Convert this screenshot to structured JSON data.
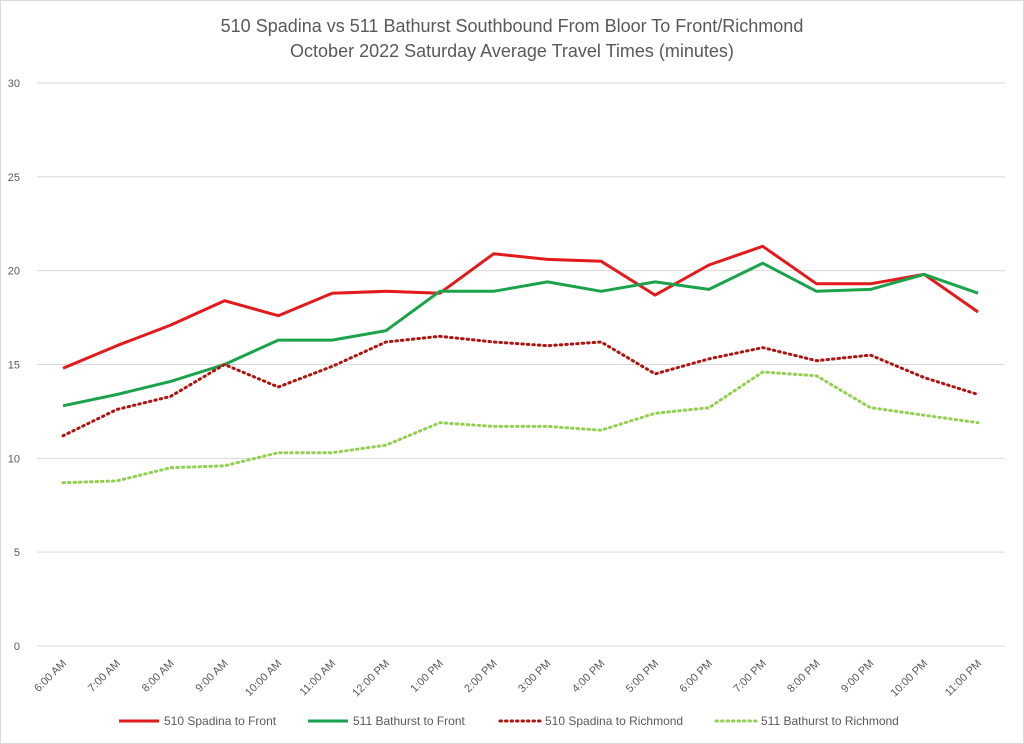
{
  "chart_data": {
    "type": "line",
    "title": "510 Spadina vs 511 Bathurst Southbound From Bloor To Front/Richmond",
    "subtitle": "October 2022 Saturday Average Travel Times (minutes)",
    "xlabel": "",
    "ylabel": "",
    "ylim": [
      0,
      30
    ],
    "yticks": [
      "0",
      "5",
      "10",
      "15",
      "20",
      "25",
      "30"
    ],
    "grid": true,
    "legend_position": "bottom",
    "categories": [
      "6:00 AM",
      "7:00 AM",
      "8:00 AM",
      "9:00 AM",
      "10:00 AM",
      "11:00 AM",
      "12:00 PM",
      "1:00 PM",
      "2:00 PM",
      "3:00 PM",
      "4:00 PM",
      "5:00 PM",
      "6:00 PM",
      "7:00 PM",
      "8:00 PM",
      "9:00 PM",
      "10:00 PM",
      "11:00 PM"
    ],
    "series": [
      {
        "name": "510 Spadina to Front",
        "color": "#e31a1c",
        "dash": "solid",
        "values": [
          14.8,
          16.0,
          17.1,
          18.4,
          17.6,
          18.8,
          18.9,
          18.8,
          20.9,
          20.6,
          20.5,
          18.7,
          20.3,
          21.3,
          19.3,
          19.3,
          19.8,
          17.8
        ]
      },
      {
        "name": "511 Bathurst to Front",
        "color": "#1aa34a",
        "dash": "solid",
        "values": [
          12.8,
          13.4,
          14.1,
          15.0,
          16.3,
          16.3,
          16.8,
          18.9,
          18.9,
          19.4,
          18.9,
          19.4,
          19.0,
          20.4,
          18.9,
          19.0,
          19.8,
          18.8
        ]
      },
      {
        "name": "510 Spadina to Richmond",
        "color": "#b0140f",
        "dash": "dotted",
        "values": [
          11.2,
          12.6,
          13.3,
          15.0,
          13.8,
          14.9,
          16.2,
          16.5,
          16.2,
          16.0,
          16.2,
          14.5,
          15.3,
          15.9,
          15.2,
          15.5,
          14.3,
          13.4
        ]
      },
      {
        "name": "511 Bathurst to Richmond",
        "color": "#92d050",
        "dash": "dotted",
        "values": [
          8.7,
          8.8,
          9.5,
          9.6,
          10.3,
          10.3,
          10.7,
          11.9,
          11.7,
          11.7,
          11.5,
          12.4,
          12.7,
          14.6,
          14.4,
          12.7,
          12.3,
          11.9
        ]
      }
    ]
  }
}
